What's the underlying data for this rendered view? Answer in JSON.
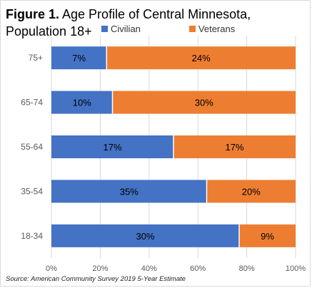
{
  "title": {
    "prefix": "Figure 1.",
    "text": " Age Profile of Central Minnesota, Population 18+"
  },
  "source": "Source: American Community Survey 2019 5-Year Estimate",
  "colors": {
    "civilian": "#4472c4",
    "veterans": "#ed7d31",
    "grid": "#d9d9d9",
    "axis_text": "#595959"
  },
  "chart_data": {
    "type": "bar",
    "orientation": "horizontal",
    "stacked": "percent",
    "title": "Figure 1. Age Profile of Central Minnesota, Population 18+",
    "categories": [
      "75+",
      "65-74",
      "55-64",
      "35-54",
      "18-34"
    ],
    "series": [
      {
        "name": "Civilian",
        "values": [
          7,
          10,
          17,
          35,
          30
        ],
        "labels": [
          "7%",
          "10%",
          "17%",
          "35%",
          "30%"
        ],
        "shares": [
          0.226,
          0.25,
          0.5,
          0.636,
          0.769
        ]
      },
      {
        "name": "Veterans",
        "values": [
          24,
          30,
          17,
          20,
          9
        ],
        "labels": [
          "24%",
          "30%",
          "17%",
          "20%",
          "9%"
        ]
      }
    ],
    "xaxis": {
      "ticks": [
        "0%",
        "20%",
        "40%",
        "60%",
        "80%",
        "100%"
      ],
      "range": [
        0,
        100
      ]
    },
    "legend_position": "top",
    "grid": true
  }
}
